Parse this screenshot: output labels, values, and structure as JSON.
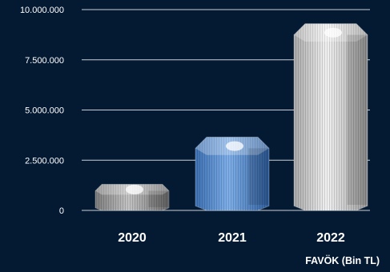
{
  "chart_data": {
    "type": "bar",
    "categories": [
      "2020",
      "2021",
      "2022"
    ],
    "values": [
      1300000,
      3650000,
      9300000
    ],
    "title": "",
    "xlabel": "FAVÖK (Bin TL)",
    "ylabel": "",
    "ylim": [
      0,
      10000000
    ],
    "yticks": [
      0,
      2500000,
      5000000,
      7500000,
      10000000
    ],
    "ytick_labels": [
      "0",
      "2.500.000",
      "5.000.000",
      "7.500.000",
      "10.000.000"
    ],
    "grid": true,
    "legend": "none",
    "colors": {
      "background": "#041a33",
      "grid": "#c9cfd6",
      "text": "#ffffff",
      "bars": [
        "#9a9a9a",
        "#4d83c8",
        "#d2d2d2"
      ]
    }
  }
}
